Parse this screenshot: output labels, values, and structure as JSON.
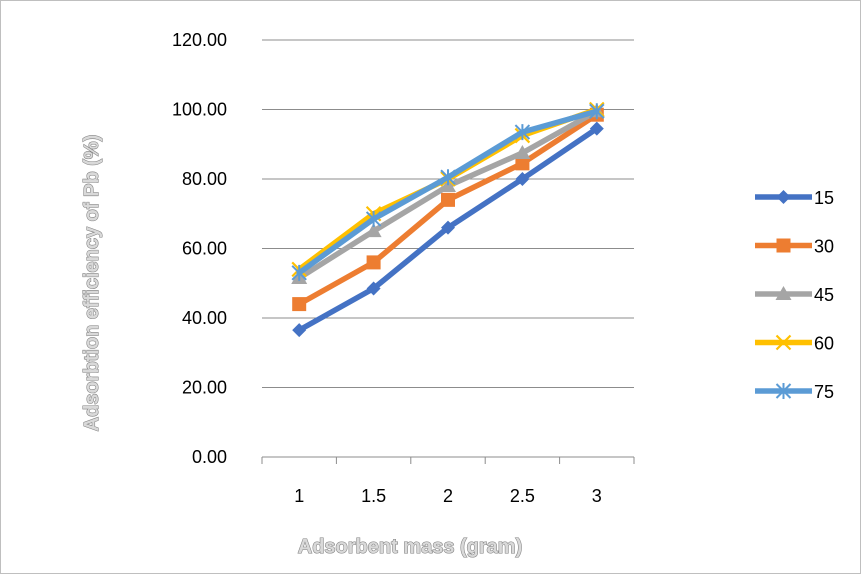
{
  "chart_data": {
    "type": "line",
    "title": "",
    "xlabel": "Adsorbent mass (gram)",
    "ylabel": "Adsorbtion efficiency of Pb (%)",
    "categories": [
      "1",
      "1.5",
      "2",
      "2.5",
      "3"
    ],
    "ylim": [
      0,
      120
    ],
    "yticks": [
      "0.00",
      "20.00",
      "40.00",
      "60.00",
      "80.00",
      "100.00",
      "120.00"
    ],
    "grid": true,
    "legend_position": "right",
    "series": [
      {
        "name": "15",
        "values": [
          36.5,
          48.5,
          66.0,
          80.0,
          94.5
        ],
        "color": "#4472c4",
        "marker": "diamond"
      },
      {
        "name": "30",
        "values": [
          44.0,
          56.0,
          74.0,
          84.5,
          98.5
        ],
        "color": "#ed7d31",
        "marker": "square"
      },
      {
        "name": "45",
        "values": [
          51.5,
          65.0,
          78.0,
          87.5,
          99.5
        ],
        "color": "#a5a5a5",
        "marker": "triangle"
      },
      {
        "name": "60",
        "values": [
          54.0,
          70.0,
          80.0,
          92.5,
          100.0
        ],
        "color": "#ffc000",
        "marker": "x"
      },
      {
        "name": "75",
        "values": [
          53.0,
          68.5,
          80.5,
          93.5,
          99.5
        ],
        "color": "#5b9bd5",
        "marker": "star"
      }
    ]
  }
}
